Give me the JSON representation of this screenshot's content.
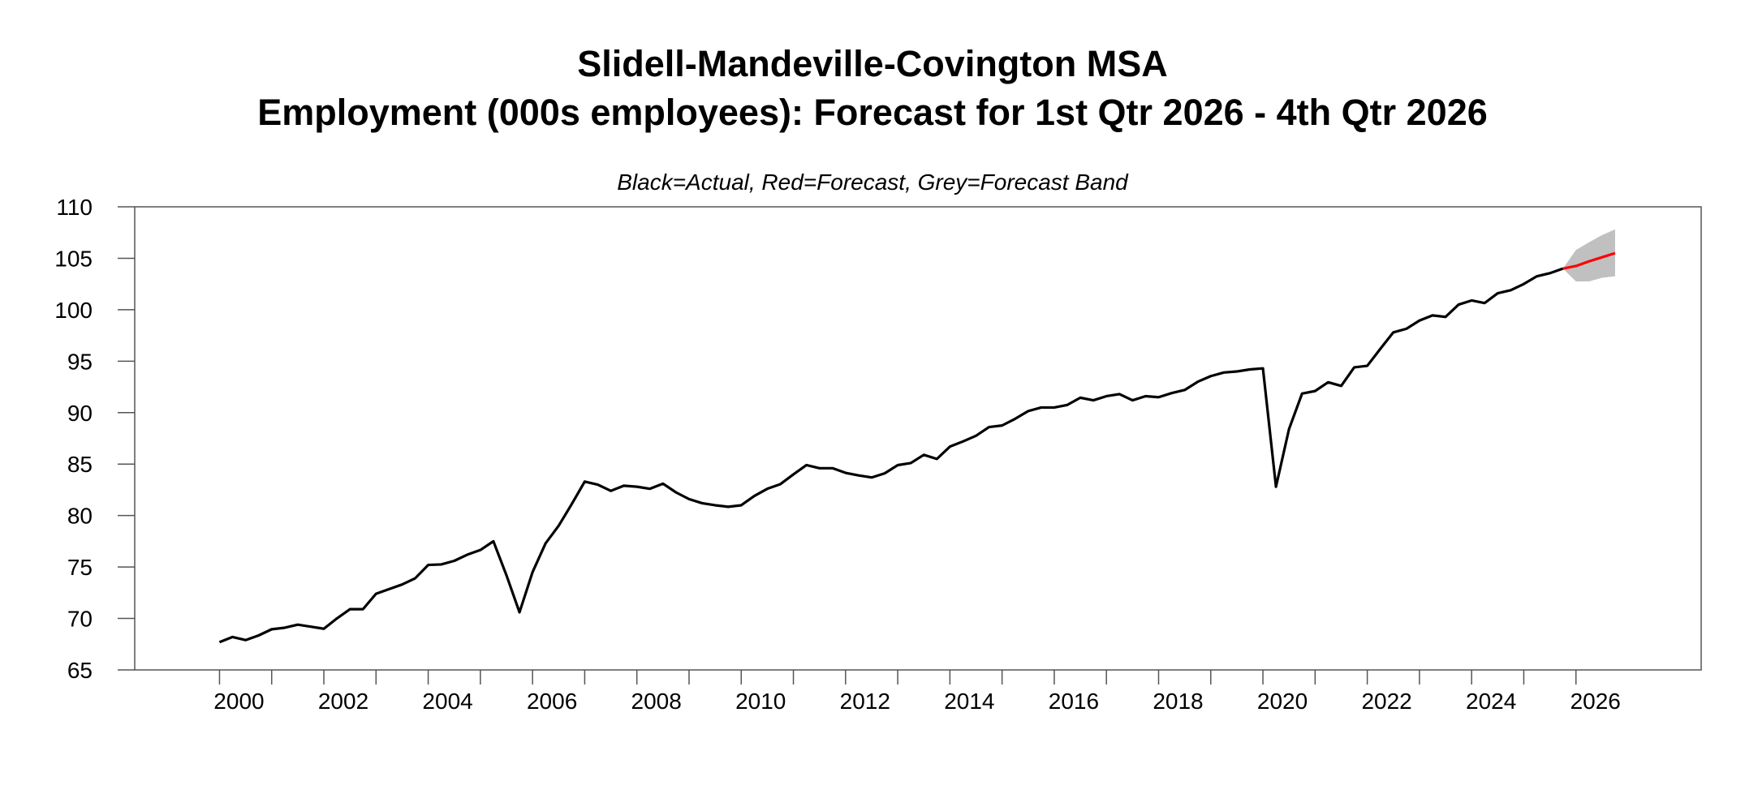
{
  "chart_data": {
    "type": "line",
    "title": [
      "Slidell-Mandeville-Covington MSA",
      "Employment (000s employees): Forecast for 1st Qtr 2026 - 4th Qtr 2026"
    ],
    "subtitle": "Black=Actual, Red=Forecast, Grey=Forecast Band",
    "xlabel": "",
    "ylabel": "",
    "ylim": [
      65,
      110
    ],
    "xlim": [
      1998.375,
      2028.4
    ],
    "y_ticks": [
      65,
      70,
      75,
      80,
      85,
      90,
      95,
      100,
      105,
      110
    ],
    "x_tick_labels": [
      "2000",
      "2002",
      "2004",
      "2006",
      "2008",
      "2010",
      "2012",
      "2014",
      "2016",
      "2018",
      "2020",
      "2022",
      "2024",
      "2026"
    ],
    "grid": false,
    "colors": {
      "actual": "#000000",
      "forecast": "#ff0000",
      "band": "#c0c0c0"
    },
    "frequency": "quarterly",
    "actual": {
      "start": "2000Q1",
      "values": [
        67.7,
        68.2,
        67.9,
        68.35,
        68.95,
        69.1,
        69.4,
        69.2,
        69.0,
        70.0,
        70.9,
        70.9,
        72.4,
        72.85,
        73.3,
        73.9,
        75.2,
        75.25,
        75.6,
        76.2,
        76.65,
        77.5,
        74.2,
        70.6,
        74.5,
        77.3,
        79.0,
        81.1,
        83.3,
        83.0,
        82.4,
        82.9,
        82.8,
        82.6,
        83.1,
        82.25,
        81.6,
        81.2,
        81.0,
        80.85,
        81.0,
        81.9,
        82.6,
        83.05,
        84.0,
        84.9,
        84.6,
        84.6,
        84.15,
        83.9,
        83.7,
        84.1,
        84.9,
        85.1,
        85.9,
        85.5,
        86.7,
        87.2,
        87.75,
        88.6,
        88.75,
        89.4,
        90.15,
        90.5,
        90.5,
        90.75,
        91.45,
        91.2,
        91.6,
        91.8,
        91.2,
        91.6,
        91.5,
        91.9,
        92.2,
        93.0,
        93.55,
        93.9,
        94.0,
        94.2,
        94.3,
        82.8,
        88.4,
        91.85,
        92.1,
        92.95,
        92.6,
        94.4,
        94.55,
        96.2,
        97.8,
        98.15,
        98.95,
        99.45,
        99.3,
        100.5,
        100.9,
        100.65,
        101.6,
        101.9,
        102.5,
        103.25,
        103.55,
        104.0
      ]
    },
    "forecast": {
      "periods": [
        "2025Q4",
        "2026Q1",
        "2026Q2",
        "2026Q3",
        "2026Q4"
      ],
      "values": [
        104.0,
        104.25,
        104.7,
        105.1,
        105.5
      ],
      "band_upper": [
        104.0,
        105.8,
        106.55,
        107.25,
        107.8
      ],
      "band_lower": [
        104.0,
        102.75,
        102.75,
        103.1,
        103.25
      ]
    }
  }
}
